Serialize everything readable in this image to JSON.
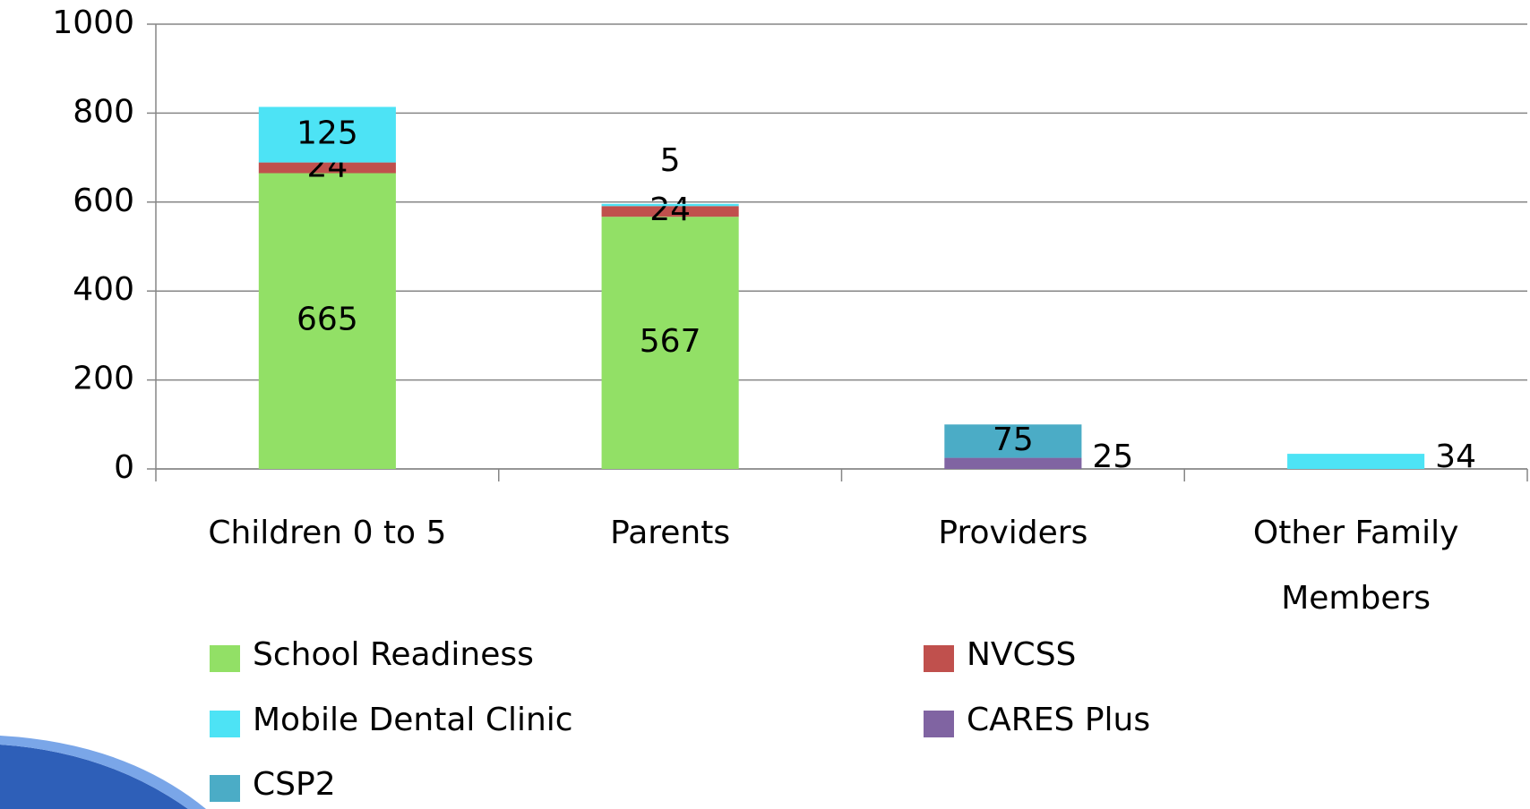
{
  "chart_data": {
    "type": "stacked-bar",
    "categories": [
      "Children 0 to 5",
      "Parents",
      "Providers",
      "Other Family Members"
    ],
    "series": [
      {
        "name": "School Readiness",
        "color": "#92e066",
        "values": [
          665,
          567,
          null,
          null
        ]
      },
      {
        "name": "NVCSS",
        "color": "#c0504d",
        "values": [
          24,
          24,
          null,
          null
        ]
      },
      {
        "name": "Mobile Dental Clinic",
        "color": "#4de3f5",
        "values": [
          125,
          5,
          null,
          34
        ]
      },
      {
        "name": "CARES Plus",
        "color": "#8064a2",
        "values": [
          null,
          null,
          25,
          null
        ]
      },
      {
        "name": "CSP2",
        "color": "#4bacc6",
        "values": [
          null,
          null,
          75,
          null
        ]
      }
    ],
    "ylim": [
      0,
      1000
    ],
    "yticks": [
      0,
      200,
      400,
      600,
      800,
      1000
    ],
    "grid": true
  }
}
